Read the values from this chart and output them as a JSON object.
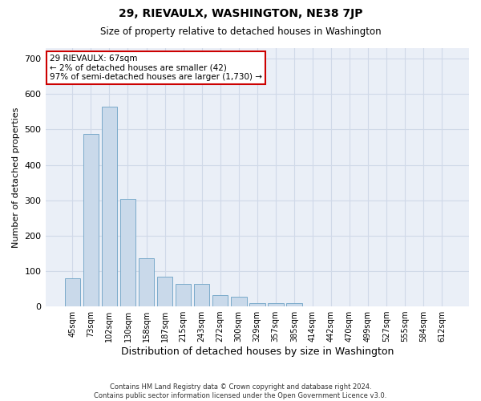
{
  "title": "29, RIEVAULX, WASHINGTON, NE38 7JP",
  "subtitle": "Size of property relative to detached houses in Washington",
  "xlabel": "Distribution of detached houses by size in Washington",
  "ylabel": "Number of detached properties",
  "bar_color": "#c9d9ea",
  "bar_edge_color": "#7aaaca",
  "categories": [
    "45sqm",
    "73sqm",
    "102sqm",
    "130sqm",
    "158sqm",
    "187sqm",
    "215sqm",
    "243sqm",
    "272sqm",
    "300sqm",
    "329sqm",
    "357sqm",
    "385sqm",
    "414sqm",
    "442sqm",
    "470sqm",
    "499sqm",
    "527sqm",
    "555sqm",
    "584sqm",
    "612sqm"
  ],
  "values": [
    80,
    487,
    565,
    303,
    137,
    85,
    63,
    63,
    32,
    27,
    10,
    10,
    10,
    0,
    0,
    0,
    0,
    0,
    0,
    0,
    0
  ],
  "ylim": [
    0,
    730
  ],
  "yticks": [
    0,
    100,
    200,
    300,
    400,
    500,
    600,
    700
  ],
  "annotation_line1": "29 RIEVAULX: 67sqm",
  "annotation_line2": "← 2% of detached houses are smaller (42)",
  "annotation_line3": "97% of semi-detached houses are larger (1,730) →",
  "footer_line1": "Contains HM Land Registry data © Crown copyright and database right 2024.",
  "footer_line2": "Contains public sector information licensed under the Open Government Licence v3.0.",
  "grid_color": "#d0d9e8",
  "background_color": "#eaeff7",
  "annotation_box_color": "#ffffff",
  "annotation_box_edge": "#cc0000"
}
